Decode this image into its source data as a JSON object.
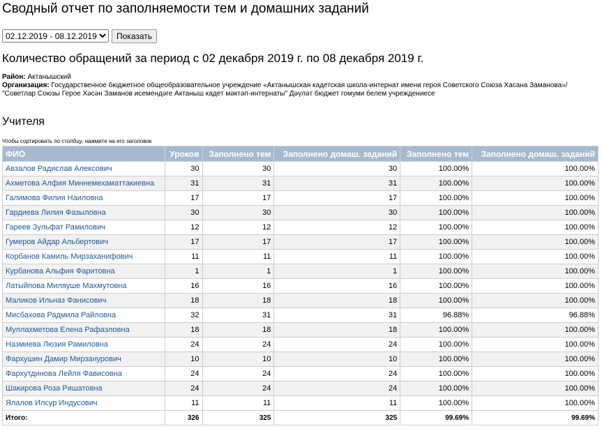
{
  "header": {
    "title": "Сводный отчет по заполняемости тем и домашних заданий"
  },
  "filter": {
    "period": "02.12.2019 - 08.12.2019",
    "button": "Показать"
  },
  "subtitle": "Количество обращений за период с 02 декабря 2019 г. по 08 декабря 2019 г.",
  "info": {
    "district_label": "Район:",
    "district": "Актанышский",
    "org_label": "Организация:",
    "org": "Государственное бюджетное общеобразовательное учреждение «Актанышская кадетская школа-интернат имени героя Советского Союза Хасана Заманова»/ \"Советлар Союзы Герое Хәсән Заманов исемендәге Актаныш кадет мәктәп-интернаты\" Дәүләт бюджет гомуми белем учреждениесе"
  },
  "section": "Учителя",
  "sort_hint": "Чтобы сортировать по столбцу, нажмите на его заголовок",
  "table": {
    "columns": [
      "ФИО",
      "Уроков",
      "Заполнено тем",
      "Заполнено домаш. заданий",
      "Заполнено тем",
      "Заполнено домаш. заданий"
    ],
    "rows": [
      [
        "Авзалов Радислав Алексович",
        "30",
        "30",
        "30",
        "100.00%",
        "100.00%"
      ],
      [
        "Ахметова Алфия Миннемехаматтакиевна",
        "31",
        "31",
        "31",
        "100.00%",
        "100.00%"
      ],
      [
        "Галимова Филия Наиловна",
        "17",
        "17",
        "17",
        "100.00%",
        "100.00%"
      ],
      [
        "Гардиева Лилия Фазыловна",
        "30",
        "30",
        "30",
        "100.00%",
        "100.00%"
      ],
      [
        "Гареев Зульфат Рамилович",
        "12",
        "12",
        "12",
        "100.00%",
        "100.00%"
      ],
      [
        "Гумеров Айдар Альбертович",
        "17",
        "17",
        "17",
        "100.00%",
        "100.00%"
      ],
      [
        "Корбанов Камиль Мирзаханифович",
        "11",
        "11",
        "11",
        "100.00%",
        "100.00%"
      ],
      [
        "Курбанова Альфия Фаритовна",
        "1",
        "1",
        "1",
        "100.00%",
        "100.00%"
      ],
      [
        "Латыйпова Миляуше Махмутовна",
        "16",
        "16",
        "16",
        "100.00%",
        "100.00%"
      ],
      [
        "Маликов Ильназ Фанисович",
        "18",
        "18",
        "18",
        "100.00%",
        "100.00%"
      ],
      [
        "Мисбахова Радмила Райловна",
        "32",
        "31",
        "31",
        "96.88%",
        "96.88%"
      ],
      [
        "Муллахметова Елена Рафаэловна",
        "18",
        "18",
        "18",
        "100.00%",
        "100.00%"
      ],
      [
        "Назмиева Люзия Рамиловна",
        "24",
        "24",
        "24",
        "100.00%",
        "100.00%"
      ],
      [
        "Фархушин Дамир Мирзанурович",
        "10",
        "10",
        "10",
        "100.00%",
        "100.00%"
      ],
      [
        "Фархутдинова Лейля Фависовна",
        "24",
        "24",
        "24",
        "100.00%",
        "100.00%"
      ],
      [
        "Шакирова Роза Ришатовна",
        "24",
        "24",
        "24",
        "100.00%",
        "100.00%"
      ],
      [
        "Ялалов Илсур Индусович",
        "11",
        "11",
        "11",
        "100.00%",
        "100.00%"
      ]
    ],
    "total": [
      "Итого:",
      "326",
      "325",
      "325",
      "99.69%",
      "99.69%"
    ]
  }
}
